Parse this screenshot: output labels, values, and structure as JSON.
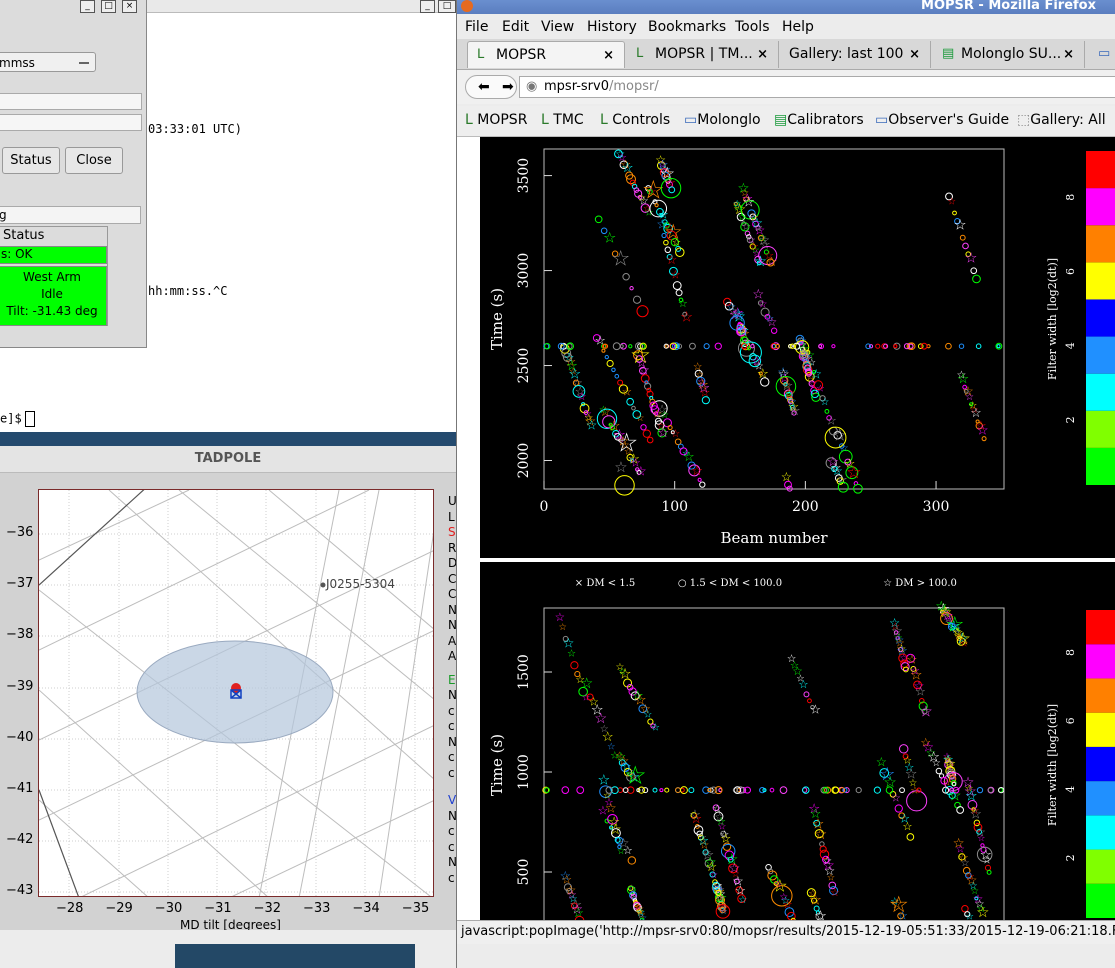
{
  "terminal": {
    "line_utc": "03:33:01 UTC)",
    "line_hhmm": "hh:mm:ss.^C",
    "prompt": "e]$"
  },
  "dialog": {
    "select_value": "mmss",
    "status_button": "Status",
    "close_button": "Close",
    "field_text": "g",
    "table_header": "Status",
    "ok_text": "s: OK",
    "west_arm": "West Arm",
    "idle": "Idle",
    "tilt": "Tilt: -31.43 deg"
  },
  "tadpole": {
    "title": "TADPOLE",
    "y_ticks": [
      "−36",
      "−37",
      "−38",
      "−39",
      "−40",
      "−41",
      "−42",
      "−43"
    ],
    "x_ticks": [
      "−28",
      "−29",
      "−30",
      "−31",
      "−32",
      "−33",
      "−34",
      "−35"
    ],
    "xlabel": "MD tilt [degrees]",
    "source_label": "J0255-5304",
    "side_letters": [
      "U",
      "L",
      "S",
      "R",
      "D",
      "C",
      "C",
      "N",
      "N",
      "A",
      "A",
      "E",
      "N",
      "c",
      "c",
      "N",
      "c",
      "c",
      "V",
      "N",
      "c",
      "c",
      "N",
      "c"
    ]
  },
  "firefox": {
    "window_title": "MOPSR - Mozilla Firefox",
    "menu": [
      "File",
      "Edit",
      "View",
      "History",
      "Bookmarks",
      "Tools",
      "Help"
    ],
    "tabs": [
      {
        "label": "MOPSR",
        "icon": "mopsr-icon"
      },
      {
        "label": "MOPSR | TM...",
        "icon": "mopsr-icon"
      },
      {
        "label": "Gallery: last 100",
        "icon": ""
      },
      {
        "label": "Molonglo SU...",
        "icon": "spreadsheet-icon"
      }
    ],
    "url_host": "mpsr-srv0",
    "url_path": "/mopsr/",
    "bookmarks": [
      {
        "label": "MOPSR",
        "icon": "mopsr-icon"
      },
      {
        "label": "TMC",
        "icon": "mopsr-icon"
      },
      {
        "label": "Controls",
        "icon": "mopsr-icon"
      },
      {
        "label": "Molonglo",
        "icon": "page-icon"
      },
      {
        "label": "Calibrators",
        "icon": "spreadsheet-icon"
      },
      {
        "label": "Observer's Guide",
        "icon": "page-icon"
      },
      {
        "label": "Gallery: All",
        "icon": "blank-icon"
      }
    ],
    "status_text": "javascript:popImage('http://mpsr-srv0:80/mopsr/results/2015-12-19-05:51:33/2015-12-19-06:21:18.FE"
  },
  "chart_data": [
    {
      "type": "scatter",
      "xlabel": "Beam number",
      "ylabel": "Time (s)",
      "x_ticks": [
        "0",
        "100",
        "200",
        "300"
      ],
      "y_ticks": [
        "2000",
        "2500",
        "3000",
        "3500"
      ],
      "xlim": [
        0,
        352
      ],
      "ylim": [
        1850,
        3640
      ],
      "colorbar_label": "Filter width [log2(dt)]",
      "colorbar_ticks": [
        "2",
        "4",
        "6",
        "8"
      ]
    },
    {
      "type": "scatter",
      "xlabel": "",
      "ylabel": "Time (s)",
      "legend": [
        "× DM < 1.5",
        "○ 1.5 < DM < 100.0",
        "☆ DM > 100.0"
      ],
      "x_ticks": [],
      "y_ticks": [
        "500",
        "1000",
        "1500"
      ],
      "xlim": [
        0,
        352
      ],
      "ylim": [
        250,
        1820
      ],
      "colorbar_label": "Filter width [log2(dt)]",
      "colorbar_ticks": [
        "2",
        "4",
        "6",
        "8"
      ]
    }
  ]
}
